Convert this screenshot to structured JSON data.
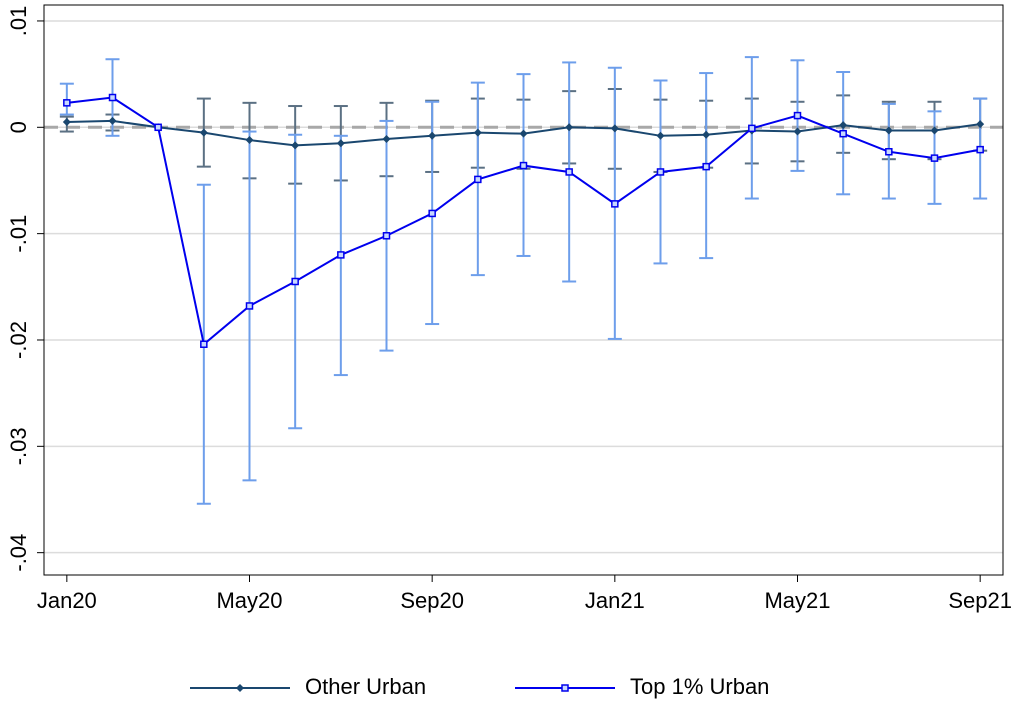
{
  "chart_data": {
    "type": "line",
    "categories": [
      "Jan20",
      null,
      null,
      null,
      "May20",
      null,
      null,
      null,
      "Sep20",
      null,
      null,
      null,
      "Jan21",
      null,
      null,
      null,
      "May21",
      null,
      null,
      null,
      "Sep21"
    ],
    "ylim": [
      -0.0421,
      0.0115
    ],
    "yticks": [
      {
        "value": 0.01,
        "label": ".01"
      },
      0,
      {
        "value": -0.01,
        "label": "-.01"
      },
      {
        "value": -0.02,
        "label": "-.02"
      },
      {
        "value": -0.03,
        "label": "-.03"
      },
      {
        "value": -0.04,
        "label": "-.04"
      }
    ],
    "grid": true,
    "reference_line": 0,
    "legend": "bottom",
    "series": [
      {
        "name": "Other Urban",
        "color": "#1a476f",
        "error_color": "#5b7083",
        "marker": "diamond",
        "values": [
          0.0005,
          0.0006,
          0,
          -0.0005,
          -0.0012,
          -0.0017,
          -0.0015,
          -0.0011,
          -0.0008,
          -0.0005,
          -0.0006,
          0,
          -0.0001,
          -0.0008,
          -0.0007,
          -0.0003,
          -0.0004,
          0.0002,
          -0.0003,
          -0.0003,
          0.0003
        ],
        "ci_high": [
          0.001,
          0.0012,
          null,
          0.0027,
          0.0023,
          0.002,
          0.002,
          0.0023,
          0.0025,
          0.0027,
          0.0026,
          0.0034,
          0.0036,
          0.0026,
          0.0025,
          0.0027,
          0.0024,
          0.003,
          0.0024,
          0.0024,
          0.0027
        ],
        "ci_low": [
          -0.0004,
          -0.0003,
          null,
          -0.0037,
          -0.0048,
          -0.0053,
          -0.005,
          -0.0046,
          -0.0042,
          -0.0038,
          -0.0039,
          -0.0034,
          -0.0039,
          -0.0042,
          -0.0038,
          -0.0034,
          -0.0032,
          -0.0024,
          -0.003,
          -0.003,
          -0.0022
        ]
      },
      {
        "name": "Top 1% Urban",
        "color": "#0000ee",
        "error_color": "#6d9eeb",
        "marker": "square",
        "values": [
          0.0023,
          0.0028,
          0,
          -0.0204,
          -0.0168,
          -0.0145,
          -0.012,
          -0.0102,
          -0.0081,
          -0.0049,
          -0.0036,
          -0.0042,
          -0.0072,
          -0.0042,
          -0.0037,
          -0.0001,
          0.0011,
          -0.0006,
          -0.0023,
          -0.0029,
          -0.0021
        ],
        "ci_high": [
          0.0041,
          0.0064,
          null,
          -0.0054,
          -0.0004,
          -0.0007,
          -0.0008,
          0.0006,
          0.0024,
          0.0042,
          0.005,
          0.0061,
          0.0056,
          0.0044,
          0.0051,
          0.0066,
          0.0063,
          0.0052,
          0.0022,
          0.0015,
          0.0027
        ],
        "ci_low": [
          0.0012,
          -0.0008,
          null,
          -0.0354,
          -0.0332,
          -0.0283,
          -0.0233,
          -0.021,
          -0.0185,
          -0.0139,
          -0.0121,
          -0.0145,
          -0.0199,
          -0.0128,
          -0.0123,
          -0.0067,
          -0.0041,
          -0.0063,
          -0.0067,
          -0.0072,
          -0.0067
        ]
      }
    ]
  }
}
